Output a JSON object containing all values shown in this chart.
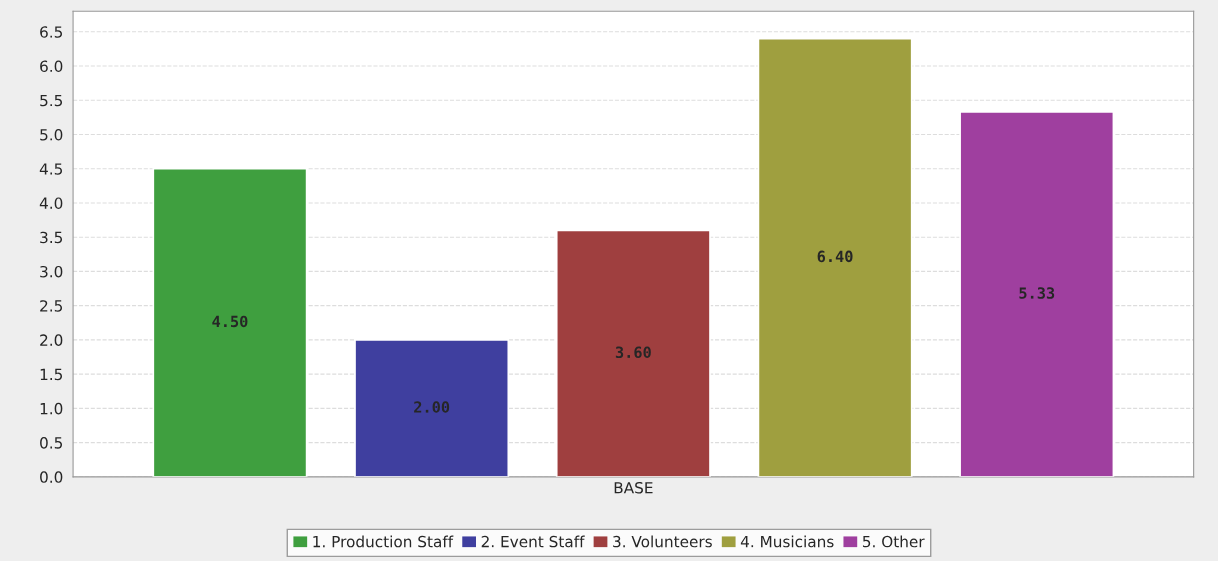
{
  "chart_data": {
    "type": "bar",
    "categories": [
      "BASE"
    ],
    "series": [
      {
        "name": "1. Production Staff",
        "color": "#3f9f3f",
        "values": [
          4.5
        ],
        "value_labels": [
          "4.50"
        ]
      },
      {
        "name": "2. Event Staff",
        "color": "#3f3f9f",
        "values": [
          2.0
        ],
        "value_labels": [
          "2.00"
        ]
      },
      {
        "name": "3. Volunteers",
        "color": "#9f3f3f",
        "values": [
          3.6
        ],
        "value_labels": [
          "3.60"
        ]
      },
      {
        "name": "4. Musicians",
        "color": "#9f9f3f",
        "values": [
          6.4
        ],
        "value_labels": [
          "6.40"
        ]
      },
      {
        "name": "5. Other",
        "color": "#9f3f9f",
        "values": [
          5.33
        ],
        "value_labels": [
          "5.33"
        ]
      }
    ],
    "ylim": [
      0,
      6.8
    ],
    "yticks": [
      {
        "value": 0,
        "label": "0.0"
      },
      0.5,
      {
        "value": 1,
        "label": "1.0"
      },
      1.5,
      {
        "value": 2,
        "label": "2.0"
      },
      2.5,
      {
        "value": 3,
        "label": "3.0"
      },
      3.5,
      {
        "value": 4,
        "label": "4.0"
      },
      4.5,
      {
        "value": 5,
        "label": "5.0"
      },
      5.5,
      {
        "value": 6,
        "label": "6.0"
      },
      6.5
    ],
    "grid": "y",
    "legend": "bottom"
  }
}
